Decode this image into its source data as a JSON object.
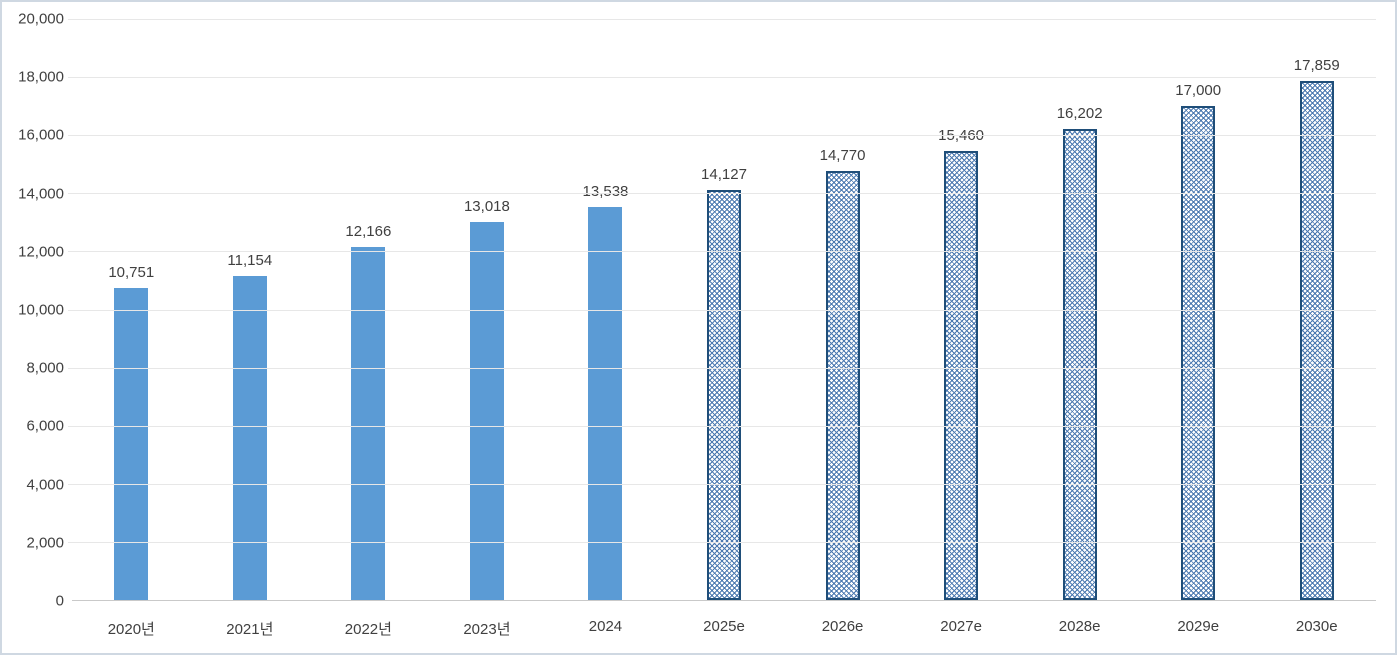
{
  "chart_data": {
    "type": "bar",
    "title": "",
    "xlabel": "",
    "ylabel": "",
    "categories": [
      "2020년",
      "2021년",
      "2022년",
      "2023년",
      "2024",
      "2025e",
      "2026e",
      "2027e",
      "2028e",
      "2029e",
      "2030e"
    ],
    "values": [
      10751,
      11154,
      12166,
      13018,
      13538,
      14127,
      14770,
      15460,
      16202,
      17000,
      17859
    ],
    "value_labels": [
      "10,751",
      "11,154",
      "12,166",
      "13,018",
      "13,538",
      "14,127",
      "14,770",
      "15,460",
      "16,202",
      "17,000",
      "17,859"
    ],
    "estimated": [
      false,
      false,
      false,
      false,
      false,
      true,
      true,
      true,
      true,
      true,
      true
    ],
    "ylim": [
      0,
      20000
    ],
    "ytick_step": 2000,
    "ytick_labels": [
      "0",
      "2,000",
      "4,000",
      "6,000",
      "8,000",
      "10,000",
      "12,000",
      "14,000",
      "16,000",
      "18,000",
      "20,000"
    ],
    "grid": true,
    "legend": false,
    "colors": {
      "actual_bar_fill": "#5b9bd5",
      "estimate_pattern_dot": "#4b79b0",
      "estimate_bar_border": "#1f4e79",
      "axis_text": "#404040",
      "gridline": "#e7e7e7",
      "axis_line": "#c9c9c9",
      "frame_border": "#cfd8e2"
    }
  }
}
